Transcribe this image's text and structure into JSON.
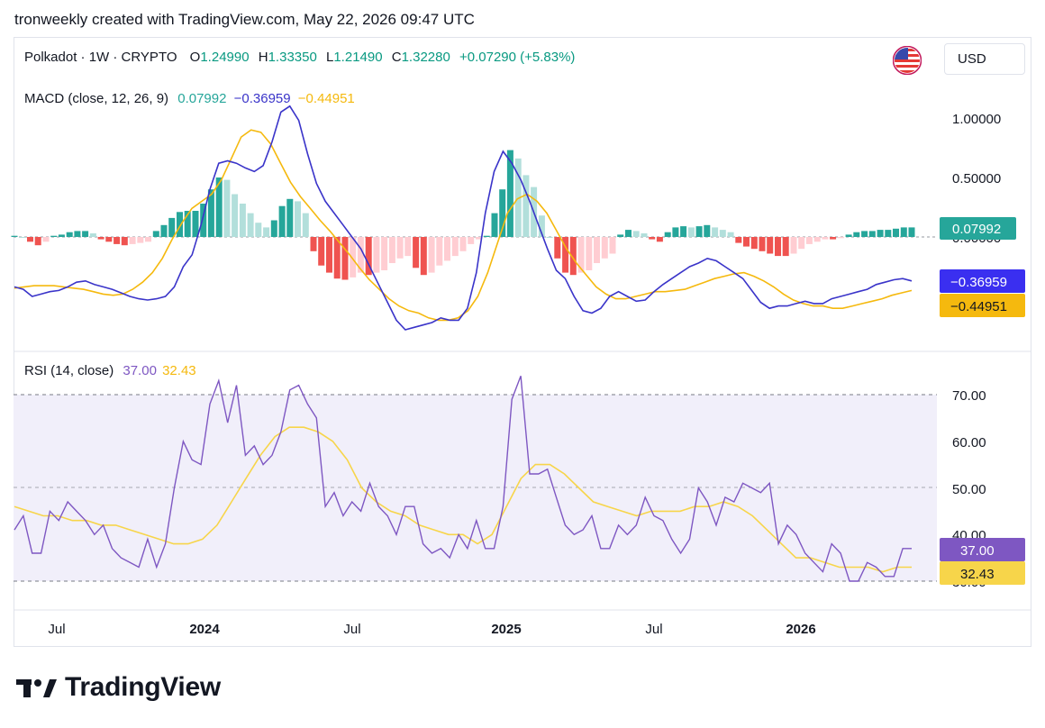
{
  "header": {
    "attribution": "tronweekly created with TradingView.com, May 22, 2026 09:47 UTC"
  },
  "symbol": {
    "name": "Polkadot · 1W · CRYPTO",
    "o_label": "O",
    "o_value": "1.24990",
    "h_label": "H",
    "h_value": "1.33350",
    "l_label": "L",
    "l_value": "1.21490",
    "c_label": "C",
    "c_value": "1.32280",
    "change": "+0.07290 (+5.83%)"
  },
  "currency": "USD",
  "colors": {
    "up": "#089981",
    "macd_line": "#3a34c9",
    "signal_line": "#f5b90e",
    "hist_up_strong": "#26a69a",
    "hist_up_weak": "#b2dfdb",
    "hist_down_strong": "#ef5350",
    "hist_down_weak": "#ffcdd2",
    "rsi_line": "#7e57c2",
    "rsi_ma": "#f7d54a",
    "rsi_band": "#f1effa"
  },
  "macd": {
    "title": "MACD (close, 12, 26, 9)",
    "hist_value": "0.07992",
    "macd_value": "−0.36959",
    "signal_value": "−0.44951",
    "axis_labels": [
      "1.00000",
      "0.50000",
      "0.00000"
    ],
    "badge_hist": "0.07992",
    "badge_macd": "−0.36959",
    "badge_signal": "−0.44951"
  },
  "rsi": {
    "title": "RSI (14, close)",
    "rsi_value": "37.00",
    "ma_value": "32.43",
    "axis_labels": [
      "70.00",
      "60.00",
      "50.00",
      "40.00",
      "30.00"
    ],
    "badge_rsi": "37.00",
    "badge_ma": "32.43"
  },
  "time_axis": [
    "Jul",
    "2024",
    "Jul",
    "2025",
    "Jul",
    "2026"
  ],
  "brand": "TradingView",
  "chart_data": [
    {
      "type": "line",
      "title": "MACD (close, 12, 26, 9)",
      "ylim": [
        -0.9,
        1.1
      ],
      "x_labels": [
        "Jul",
        "2024",
        "Jul",
        "2025",
        "Jul",
        "2026"
      ],
      "histogram": [
        0.01,
        0.0,
        -0.04,
        -0.07,
        -0.04,
        0.01,
        0.02,
        0.04,
        0.05,
        0.05,
        0.03,
        -0.02,
        -0.04,
        -0.06,
        -0.07,
        -0.06,
        -0.05,
        -0.04,
        0.05,
        0.1,
        0.16,
        0.21,
        0.22,
        0.22,
        0.28,
        0.4,
        0.5,
        0.48,
        0.36,
        0.28,
        0.2,
        0.12,
        0.08,
        0.14,
        0.26,
        0.32,
        0.3,
        0.2,
        -0.12,
        -0.24,
        -0.3,
        -0.35,
        -0.36,
        -0.34,
        -0.3,
        -0.32,
        -0.3,
        -0.28,
        -0.22,
        -0.18,
        -0.16,
        -0.26,
        -0.32,
        -0.3,
        -0.24,
        -0.2,
        -0.16,
        -0.12,
        -0.06,
        -0.02,
        0.01,
        0.2,
        0.4,
        0.73,
        0.66,
        0.52,
        0.42,
        0.18,
        0.0,
        -0.18,
        -0.3,
        -0.32,
        -0.3,
        -0.28,
        -0.22,
        -0.18,
        -0.14,
        0.02,
        0.06,
        0.05,
        0.03,
        -0.02,
        -0.04,
        0.04,
        0.08,
        0.09,
        0.08,
        0.09,
        0.1,
        0.08,
        0.06,
        0.04,
        -0.05,
        -0.08,
        -0.1,
        -0.12,
        -0.14,
        -0.16,
        -0.16,
        -0.14,
        -0.1,
        -0.06,
        -0.04,
        -0.02,
        -0.02,
        -0.01,
        0.02,
        0.04,
        0.05,
        0.05,
        0.06,
        0.06,
        0.07,
        0.08,
        0.08
      ],
      "series": [
        {
          "name": "MACD",
          "values": [
            -0.42,
            -0.44,
            -0.5,
            -0.48,
            -0.46,
            -0.45,
            -0.42,
            -0.38,
            -0.37,
            -0.4,
            -0.42,
            -0.44,
            -0.47,
            -0.5,
            -0.52,
            -0.53,
            -0.52,
            -0.5,
            -0.42,
            -0.25,
            -0.15,
            0.1,
            0.4,
            0.62,
            0.64,
            0.62,
            0.58,
            0.55,
            0.6,
            0.8,
            1.05,
            1.1,
            0.98,
            0.7,
            0.45,
            0.3,
            0.2,
            0.1,
            0.0,
            -0.1,
            -0.25,
            -0.4,
            -0.55,
            -0.7,
            -0.78,
            -0.76,
            -0.74,
            -0.72,
            -0.68,
            -0.7,
            -0.7,
            -0.6,
            -0.3,
            0.2,
            0.55,
            0.72,
            0.62,
            0.48,
            0.3,
            0.1,
            -0.1,
            -0.28,
            -0.35,
            -0.5,
            -0.62,
            -0.64,
            -0.6,
            -0.5,
            -0.46,
            -0.5,
            -0.54,
            -0.53,
            -0.46,
            -0.4,
            -0.35,
            -0.3,
            -0.25,
            -0.22,
            -0.18,
            -0.2,
            -0.25,
            -0.3,
            -0.35,
            -0.45,
            -0.55,
            -0.6,
            -0.58,
            -0.58,
            -0.56,
            -0.54,
            -0.56,
            -0.56,
            -0.52,
            -0.5,
            -0.48,
            -0.46,
            -0.44,
            -0.4,
            -0.38,
            -0.36,
            -0.35,
            -0.37
          ]
        },
        {
          "name": "Signal",
          "values": [
            -0.43,
            -0.42,
            -0.41,
            -0.41,
            -0.41,
            -0.42,
            -0.43,
            -0.44,
            -0.46,
            -0.48,
            -0.49,
            -0.48,
            -0.44,
            -0.38,
            -0.3,
            -0.18,
            -0.02,
            0.12,
            0.24,
            0.3,
            0.36,
            0.48,
            0.66,
            0.84,
            0.9,
            0.88,
            0.78,
            0.62,
            0.46,
            0.34,
            0.24,
            0.14,
            0.05,
            -0.05,
            -0.15,
            -0.26,
            -0.36,
            -0.44,
            -0.52,
            -0.58,
            -0.62,
            -0.64,
            -0.68,
            -0.7,
            -0.7,
            -0.68,
            -0.62,
            -0.5,
            -0.3,
            -0.05,
            0.2,
            0.32,
            0.36,
            0.3,
            0.2,
            0.05,
            -0.1,
            -0.22,
            -0.32,
            -0.42,
            -0.48,
            -0.52,
            -0.52,
            -0.5,
            -0.48,
            -0.46,
            -0.46,
            -0.45,
            -0.44,
            -0.41,
            -0.38,
            -0.35,
            -0.33,
            -0.31,
            -0.3,
            -0.33,
            -0.37,
            -0.42,
            -0.48,
            -0.53,
            -0.56,
            -0.58,
            -0.58,
            -0.6,
            -0.6,
            -0.58,
            -0.56,
            -0.54,
            -0.52,
            -0.49,
            -0.47,
            -0.45
          ]
        }
      ]
    },
    {
      "type": "line",
      "title": "RSI (14, close)",
      "ylim": [
        21,
        77
      ],
      "band": [
        30,
        70
      ],
      "x_labels": [
        "Jul",
        "2024",
        "Jul",
        "2025",
        "Jul",
        "2026"
      ],
      "series": [
        {
          "name": "RSI",
          "values": [
            41,
            44,
            36,
            36,
            45,
            43,
            47,
            45,
            43,
            40,
            42,
            37,
            35,
            34,
            33,
            39,
            33,
            38,
            50,
            60,
            56,
            55,
            68,
            73,
            64,
            72,
            57,
            59,
            55,
            57,
            62,
            71,
            72,
            68,
            65,
            46,
            49,
            44,
            47,
            45,
            51,
            46,
            44,
            40,
            46,
            46,
            38,
            36,
            37,
            35,
            40,
            37,
            43,
            37,
            37,
            46,
            69,
            74,
            53,
            53,
            54,
            48,
            42,
            40,
            41,
            44,
            37,
            37,
            42,
            40,
            42,
            48,
            44,
            43,
            39,
            36,
            39,
            50,
            47,
            42,
            48,
            47,
            51,
            50,
            49,
            51,
            38,
            42,
            40,
            36,
            34,
            32,
            38,
            36,
            30,
            30,
            34,
            33,
            31,
            31,
            37,
            37
          ]
        },
        {
          "name": "MA",
          "values": [
            46,
            45,
            44,
            44,
            43,
            43,
            42,
            42,
            41,
            40,
            39,
            38,
            38,
            39,
            42,
            47,
            52,
            57,
            61,
            63,
            63,
            62,
            60,
            56,
            50,
            47,
            45,
            44,
            42,
            41,
            40,
            40,
            38,
            40,
            46,
            52,
            55,
            55,
            53,
            50,
            47,
            46,
            45,
            44,
            45,
            45,
            45,
            46,
            46,
            47,
            46,
            44,
            41,
            38,
            35,
            35,
            34,
            33,
            33,
            33,
            32,
            33,
            33
          ]
        }
      ]
    }
  ]
}
